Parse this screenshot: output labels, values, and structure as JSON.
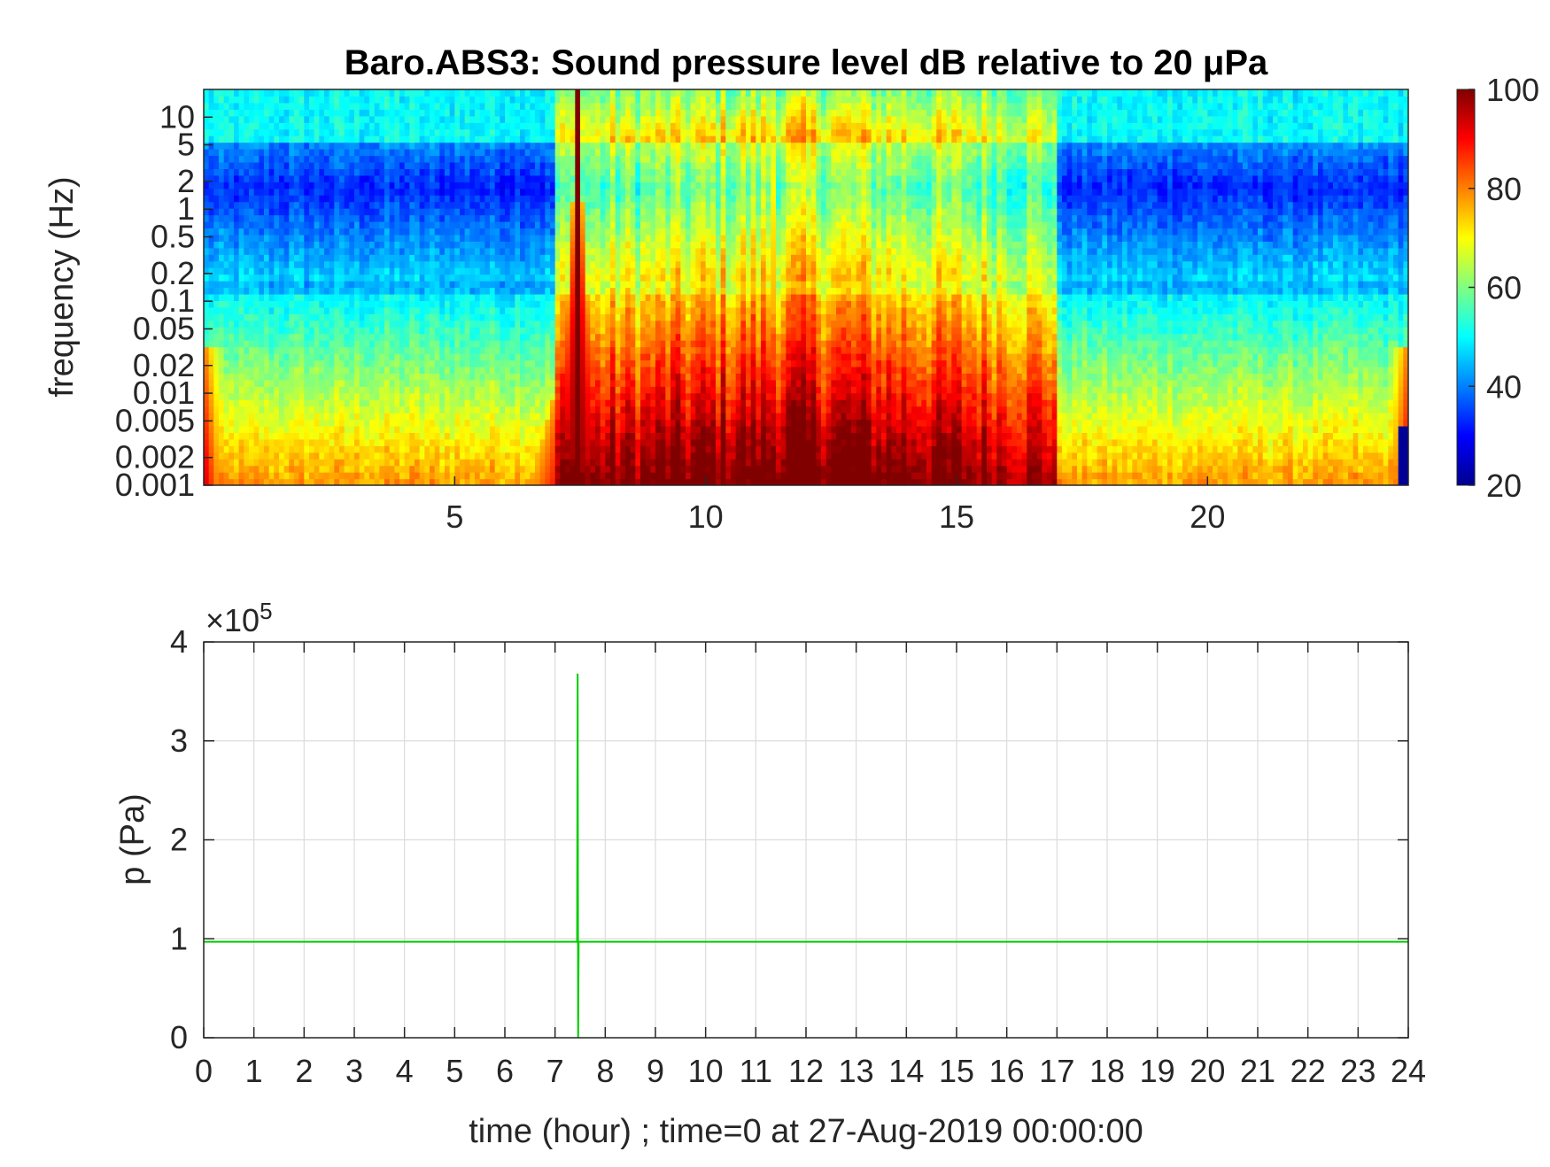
{
  "chart_data": [
    {
      "type": "heatmap",
      "title": "Baro.ABS3: Sound pressure level dB relative to 20 μPa",
      "xlabel": "",
      "ylabel": "frequency (Hz)",
      "y_scale": "log",
      "xlim": [
        0,
        24
      ],
      "ylim": [
        0.001,
        20
      ],
      "x_ticks": [
        5,
        10,
        15,
        20
      ],
      "y_ticks": [
        0.001,
        0.002,
        0.005,
        0.01,
        0.02,
        0.05,
        0.1,
        0.2,
        0.5,
        1,
        2,
        5,
        10
      ],
      "y_tick_labels": [
        "0.001",
        "0.002",
        "0.005",
        "0.01",
        "0.02",
        "0.05",
        "0.1",
        "0.2",
        "0.5",
        "1",
        "2",
        "5",
        "10"
      ],
      "colorbar": {
        "colormap": "jet",
        "range": [
          20,
          100
        ],
        "ticks": [
          20,
          40,
          60,
          80,
          100
        ],
        "colors": [
          "#00008f",
          "#0000ff",
          "#0080ff",
          "#00ffff",
          "#80ff80",
          "#ffff00",
          "#ff8000",
          "#ff0000",
          "#800000"
        ]
      },
      "events": [
        {
          "time": 7.45,
          "level": 100,
          "description_hidden": true
        },
        {
          "time": 11.35,
          "level": 85
        },
        {
          "time": 12.3,
          "level": 80
        },
        {
          "time": 16.3,
          "level": 65
        }
      ],
      "active_period": [
        7.0,
        17.0
      ]
    },
    {
      "type": "line",
      "xlabel": "time (hour) ; time=0 at 27-Aug-2019 00:00:00",
      "ylabel": "p (Pa)",
      "exponent_label": "×10",
      "exponent": "5",
      "xlim": [
        0,
        24
      ],
      "ylim": [
        0,
        4
      ],
      "x_ticks": [
        0,
        1,
        2,
        3,
        4,
        5,
        6,
        7,
        8,
        9,
        10,
        11,
        12,
        13,
        14,
        15,
        16,
        17,
        18,
        19,
        20,
        21,
        22,
        23,
        24
      ],
      "y_ticks": [
        0,
        1,
        2,
        3,
        4
      ],
      "grid": true,
      "series": [
        {
          "color": "#00cc00",
          "x": [
            0,
            7.44,
            7.45,
            7.46,
            7.47,
            24
          ],
          "y": [
            0.97,
            0.97,
            3.68,
            0.0,
            0.97,
            0.97
          ]
        }
      ]
    }
  ]
}
